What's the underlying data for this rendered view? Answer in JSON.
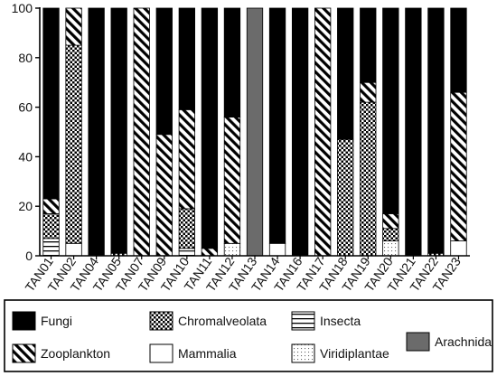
{
  "chart_data": {
    "type": "bar",
    "stacked": true,
    "categories": [
      "TAN01",
      "TAN02",
      "TAN04",
      "TAN05",
      "TAN07",
      "TAN09",
      "TAN10",
      "TAN11",
      "TAN12",
      "TAN13",
      "TAN14",
      "TAN16",
      "TAN17",
      "TAN18",
      "TAN19",
      "TAN20",
      "TAN21",
      "TAN22",
      "TAN23"
    ],
    "ylim": [
      0,
      100
    ],
    "yticks": [
      0,
      20,
      40,
      60,
      80,
      100
    ],
    "grid": false,
    "legend_position": "bottom",
    "series": [
      {
        "name": "Insecta",
        "pattern": "horizontal-lines",
        "values": [
          7,
          0,
          0,
          0,
          0,
          0,
          2,
          0,
          0,
          0,
          0,
          0,
          0,
          0,
          0,
          0,
          0,
          0,
          0
        ]
      },
      {
        "name": "Mammalia",
        "pattern": "solid-white",
        "values": [
          0,
          5,
          0,
          0,
          0,
          0,
          1,
          0,
          0,
          0,
          5,
          0,
          0,
          0,
          0,
          0,
          0,
          0,
          6
        ]
      },
      {
        "name": "Viridiplantae",
        "pattern": "fine-dots",
        "values": [
          0,
          0,
          0,
          0,
          0,
          0,
          0,
          0,
          5,
          0,
          0,
          0,
          0,
          0,
          0,
          6,
          0,
          0,
          0
        ]
      },
      {
        "name": "Chromalveolata",
        "pattern": "checker",
        "values": [
          10,
          80,
          0,
          1,
          0,
          0,
          16,
          0,
          0,
          0,
          0,
          0,
          0,
          47,
          62,
          5,
          0,
          1,
          0
        ]
      },
      {
        "name": "Zooplankton",
        "pattern": "diagonal-stripes",
        "values": [
          6,
          15,
          0,
          0,
          100,
          49,
          40,
          3,
          51,
          0,
          0,
          0,
          100,
          0,
          8,
          6,
          0,
          0,
          60
        ]
      },
      {
        "name": "Arachnida",
        "pattern": "solid-gray",
        "values": [
          0,
          0,
          0,
          0,
          0,
          0,
          0,
          0,
          0,
          100,
          0,
          0,
          0,
          0,
          0,
          0,
          0,
          0,
          0
        ]
      },
      {
        "name": "Fungi",
        "pattern": "solid-black",
        "values": [
          77,
          0,
          100,
          99,
          0,
          51,
          41,
          97,
          44,
          0,
          95,
          100,
          0,
          53,
          30,
          83,
          100,
          99,
          34
        ]
      }
    ],
    "legend": [
      {
        "name": "Fungi",
        "pattern": "solid-black"
      },
      {
        "name": "Chromalveolata",
        "pattern": "checker"
      },
      {
        "name": "Insecta",
        "pattern": "horizontal-lines"
      },
      {
        "name": "Arachnida",
        "pattern": "solid-gray"
      },
      {
        "name": "Zooplankton",
        "pattern": "diagonal-stripes"
      },
      {
        "name": "Mammalia",
        "pattern": "solid-white"
      },
      {
        "name": "Viridiplantae",
        "pattern": "fine-dots"
      }
    ],
    "colors": {
      "black": "#000000",
      "gray": "#6b6b6b",
      "white": "#ffffff"
    }
  }
}
